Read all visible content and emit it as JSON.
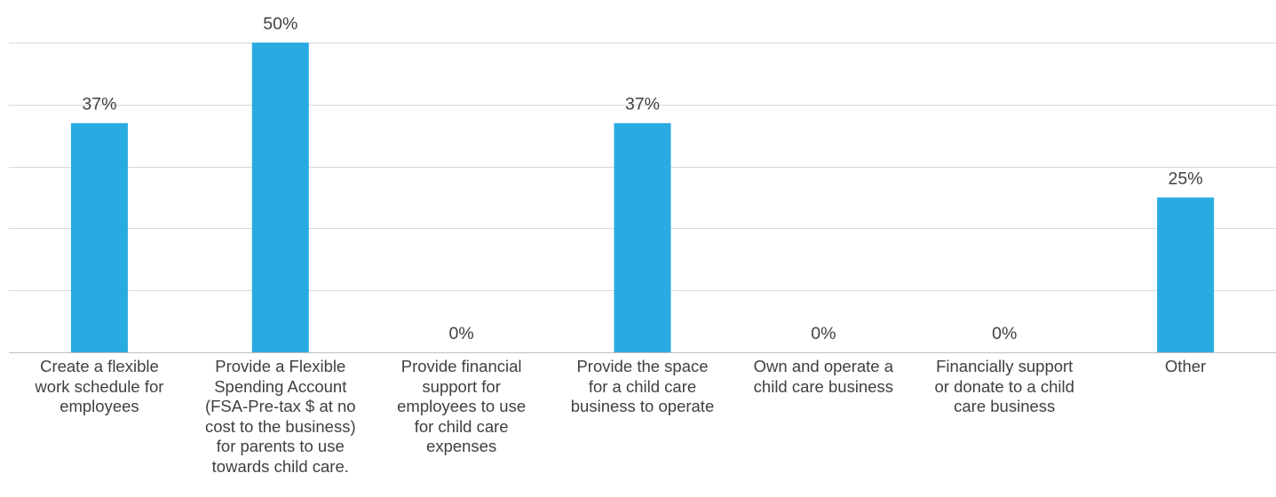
{
  "chart_data": {
    "type": "bar",
    "title": "",
    "xlabel": "",
    "ylabel": "",
    "categories": [
      "Create a flexible work schedule for employees",
      "Provide a Flexible Spending Account (FSA-Pre-tax $ at no cost to the business) for parents to use towards child care.",
      "Provide financial support for employees to use for child care expenses",
      "Provide the space for a child care business to operate",
      "Own and operate a child care business",
      "Financially support or donate to a child care business",
      "Other"
    ],
    "category_lines": [
      [
        "Create a flexible",
        "work schedule for",
        "employees"
      ],
      [
        "Provide a Flexible",
        "Spending Account",
        "(FSA-Pre-tax $ at no",
        "cost to the business)",
        "for parents to use",
        "towards child care."
      ],
      [
        "Provide financial",
        "support for",
        "employees to use",
        "for child care",
        "expenses"
      ],
      [
        "Provide the space",
        "for a child care",
        "business to operate"
      ],
      [
        "Own and operate a",
        "child care business"
      ],
      [
        "Financially support",
        "or donate to a child",
        "care business"
      ],
      [
        "Other"
      ]
    ],
    "values": [
      37,
      50,
      0,
      37,
      0,
      0,
      25
    ],
    "value_labels": [
      "37%",
      "50%",
      "0%",
      "37%",
      "0%",
      "0%",
      "25%"
    ],
    "ylim": [
      0,
      50
    ],
    "grid": true,
    "bar_color": "#29ABE2",
    "gridline_color": "#D9D9D9",
    "legend": "none"
  }
}
